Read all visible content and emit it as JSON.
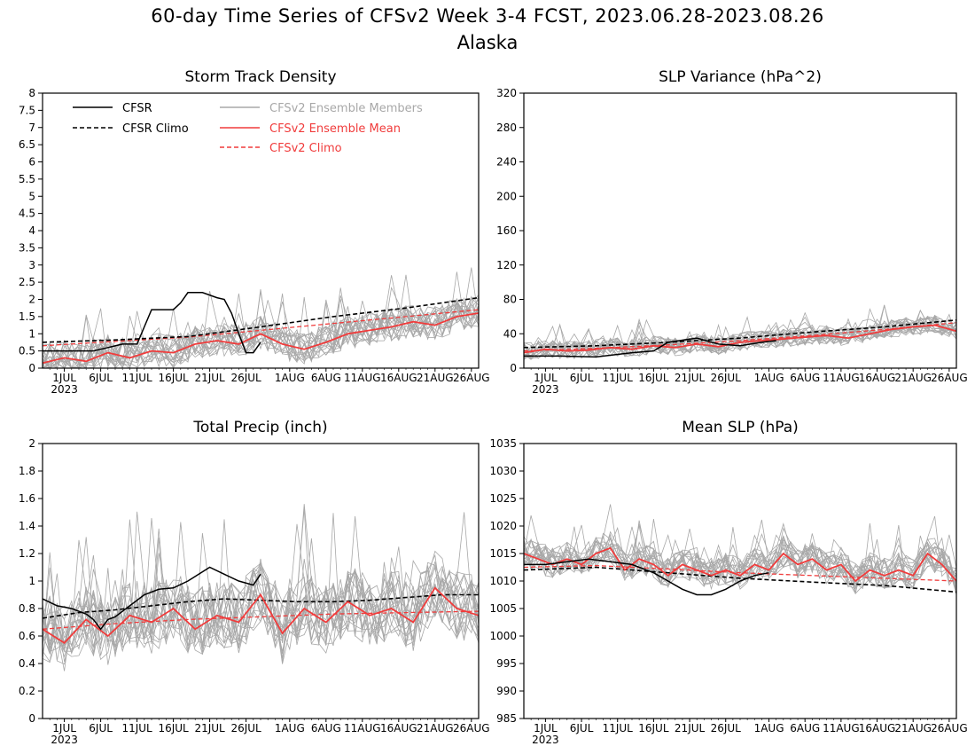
{
  "header": {
    "title": "60-day Time Series of CFSv2 Week 3-4 FCST, 2023.06.28-2023.08.26",
    "subtitle": "Alaska"
  },
  "legend": {
    "cfsr": "CFSR",
    "cfsr_climo": "CFSR Climo",
    "ens_members": "CFSv2 Ensemble Members",
    "ens_mean": "CFSv2 Ensemble Mean",
    "cfsv2_climo": "CFSv2 Climo"
  },
  "colors": {
    "cfsr": "#000000",
    "cfsr_climo": "#000000",
    "members": "#a8a8a8",
    "ens_mean": "#f03c3c",
    "cfsv2_climo": "#f03c3c"
  },
  "x_axis": {
    "days": 60,
    "tick_days": [
      3,
      8,
      13,
      18,
      23,
      28,
      34,
      39,
      44,
      49,
      54,
      59
    ],
    "tick_labels": [
      "1JUL",
      "6JUL",
      "11JUL",
      "16JUL",
      "21JUL",
      "26JUL",
      "1AUG",
      "6AUG",
      "11AUG",
      "16AUG",
      "21AUG",
      "26AUG"
    ],
    "year_label": "2023"
  },
  "chart_data": [
    {
      "type": "line",
      "title": "Storm Track Density",
      "ylim": [
        0,
        8
      ],
      "yticks": [
        0,
        0.5,
        1,
        1.5,
        2,
        2.5,
        3,
        3.5,
        4,
        4.5,
        5,
        5.5,
        6,
        6.5,
        7,
        7.5,
        8
      ],
      "ytick_labels": [
        "0",
        "0.5",
        "1",
        "1.5",
        "2",
        "2.5",
        "3",
        "3.5",
        "4",
        "4.5",
        "5",
        "5.5",
        "6",
        "6.5",
        "7",
        "7.5",
        "8"
      ],
      "legend_position": "top-left",
      "cfsr": {
        "x": [
          0,
          3,
          5,
          7,
          9,
          11,
          13,
          14,
          15,
          18,
          19,
          20,
          22,
          24,
          25,
          26,
          27,
          28,
          29,
          30
        ],
        "y": [
          0.5,
          0.5,
          0.5,
          0.5,
          0.6,
          0.7,
          0.7,
          1.2,
          1.7,
          1.7,
          1.9,
          2.2,
          2.2,
          2.05,
          2.0,
          1.6,
          1.0,
          0.45,
          0.45,
          0.75
        ]
      },
      "cfsr_climo": {
        "x": [
          0,
          10,
          20,
          30,
          40,
          50,
          60
        ],
        "y": [
          0.75,
          0.82,
          0.92,
          1.2,
          1.5,
          1.75,
          2.05
        ]
      },
      "cfsv2_climo": {
        "x": [
          0,
          10,
          20,
          30,
          40,
          50,
          60
        ],
        "y": [
          0.65,
          0.78,
          0.9,
          1.1,
          1.3,
          1.5,
          1.7
        ]
      },
      "ens_mean": {
        "x": [
          0,
          3,
          6,
          9,
          12,
          15,
          18,
          21,
          24,
          27,
          30,
          33,
          36,
          39,
          42,
          45,
          48,
          51,
          54,
          57,
          60
        ],
        "y": [
          0.15,
          0.3,
          0.2,
          0.45,
          0.3,
          0.5,
          0.45,
          0.7,
          0.8,
          0.7,
          1.0,
          0.7,
          0.55,
          0.75,
          1.0,
          1.1,
          1.2,
          1.35,
          1.25,
          1.5,
          1.6
        ]
      },
      "members": {
        "count": 20,
        "spread": 0.55,
        "lower": 0.0
      }
    },
    {
      "type": "line",
      "title": "SLP Variance (hPa^2)",
      "ylim": [
        0,
        320
      ],
      "yticks": [
        0,
        40,
        80,
        120,
        160,
        200,
        240,
        280,
        320
      ],
      "ytick_labels": [
        "0",
        "40",
        "80",
        "120",
        "160",
        "200",
        "240",
        "280",
        "320"
      ],
      "cfsr": {
        "x": [
          0,
          5,
          10,
          15,
          18,
          20,
          24,
          27,
          30,
          33,
          35
        ],
        "y": [
          14,
          14,
          13,
          18,
          20,
          30,
          35,
          28,
          26,
          30,
          32
        ]
      },
      "cfsr_climo": {
        "x": [
          0,
          10,
          20,
          30,
          40,
          50,
          60
        ],
        "y": [
          24,
          26,
          30,
          35,
          42,
          48,
          56
        ]
      },
      "cfsv2_climo": {
        "x": [
          0,
          10,
          20,
          30,
          40,
          50,
          60
        ],
        "y": [
          20,
          23,
          27,
          32,
          38,
          45,
          53
        ]
      },
      "ens_mean": {
        "x": [
          0,
          3,
          6,
          9,
          12,
          15,
          18,
          21,
          24,
          27,
          30,
          33,
          36,
          39,
          42,
          45,
          48,
          51,
          54,
          57,
          60
        ],
        "y": [
          18,
          22,
          20,
          21,
          24,
          22,
          26,
          24,
          28,
          25,
          30,
          32,
          34,
          36,
          38,
          35,
          40,
          45,
          48,
          50,
          43
        ]
      },
      "members": {
        "count": 20,
        "spread": 12,
        "lower": 0
      }
    },
    {
      "type": "line",
      "title": "Total Precip (inch)",
      "ylim": [
        0,
        2
      ],
      "yticks": [
        0,
        0.2,
        0.4,
        0.6,
        0.8,
        1,
        1.2,
        1.4,
        1.6,
        1.8,
        2
      ],
      "ytick_labels": [
        "0",
        "0.2",
        "0.4",
        "0.6",
        "0.8",
        "1",
        "1.2",
        "1.4",
        "1.6",
        "1.8",
        "2"
      ],
      "cfsr": {
        "x": [
          0,
          2,
          4,
          6,
          7,
          8,
          9,
          10,
          12,
          14,
          16,
          18,
          20,
          23,
          25,
          27,
          29,
          30
        ],
        "y": [
          0.87,
          0.82,
          0.8,
          0.76,
          0.72,
          0.65,
          0.72,
          0.74,
          0.82,
          0.9,
          0.94,
          0.95,
          1.0,
          1.1,
          1.05,
          1.0,
          0.97,
          1.05
        ]
      },
      "cfsr_climo": {
        "x": [
          0,
          5,
          10,
          15,
          20,
          25,
          30,
          35,
          40,
          45,
          50,
          55,
          60
        ],
        "y": [
          0.73,
          0.77,
          0.79,
          0.82,
          0.85,
          0.87,
          0.86,
          0.85,
          0.85,
          0.86,
          0.88,
          0.9,
          0.9
        ]
      },
      "cfsv2_climo": {
        "x": [
          0,
          10,
          20,
          30,
          40,
          50,
          60
        ],
        "y": [
          0.65,
          0.69,
          0.72,
          0.74,
          0.76,
          0.77,
          0.78
        ]
      },
      "ens_mean": {
        "x": [
          0,
          3,
          6,
          9,
          12,
          15,
          18,
          21,
          24,
          27,
          30,
          33,
          36,
          39,
          42,
          45,
          48,
          51,
          54,
          57,
          60
        ],
        "y": [
          0.65,
          0.55,
          0.72,
          0.6,
          0.75,
          0.7,
          0.8,
          0.65,
          0.75,
          0.7,
          0.9,
          0.62,
          0.8,
          0.7,
          0.85,
          0.75,
          0.8,
          0.7,
          0.95,
          0.8,
          0.75
        ]
      },
      "members": {
        "count": 20,
        "spread": 0.28,
        "lower": 0.0
      }
    },
    {
      "type": "line",
      "title": "Mean SLP (hPa)",
      "ylim": [
        985,
        1035
      ],
      "yticks": [
        985,
        990,
        995,
        1000,
        1005,
        1010,
        1015,
        1020,
        1025,
        1030,
        1035
      ],
      "ytick_labels": [
        "985",
        "990",
        "995",
        "1000",
        "1005",
        "1010",
        "1015",
        "1020",
        "1025",
        "1030",
        "1035"
      ],
      "cfsr": {
        "x": [
          0,
          3,
          6,
          9,
          12,
          15,
          18,
          20,
          22,
          24,
          26,
          28,
          30,
          32,
          34
        ],
        "y": [
          1013,
          1013,
          1013.5,
          1014,
          1013.5,
          1013,
          1011.5,
          1010,
          1008.5,
          1007.5,
          1007.5,
          1008.5,
          1010,
          1011,
          1011.5
        ]
      },
      "cfsr_climo": {
        "x": [
          0,
          10,
          20,
          30,
          40,
          50,
          60
        ],
        "y": [
          1012,
          1012.5,
          1011.5,
          1010.5,
          1009.8,
          1009.2,
          1008
        ]
      },
      "cfsv2_climo": {
        "x": [
          0,
          10,
          20,
          30,
          40,
          50,
          60
        ],
        "y": [
          1012.5,
          1012.8,
          1012.2,
          1011.5,
          1011.0,
          1010.5,
          1010.0
        ]
      },
      "ens_mean": {
        "x": [
          0,
          2,
          4,
          6,
          8,
          10,
          12,
          14,
          16,
          18,
          20,
          22,
          24,
          26,
          28,
          30,
          32,
          34,
          36,
          38,
          40,
          42,
          44,
          46,
          48,
          50,
          52,
          54,
          56,
          58,
          60
        ],
        "y": [
          1015,
          1014,
          1013,
          1014,
          1013,
          1015,
          1016,
          1012,
          1014,
          1013,
          1011,
          1013,
          1012,
          1011,
          1012,
          1011,
          1013,
          1012,
          1015,
          1013,
          1014,
          1012,
          1013,
          1010,
          1012,
          1011,
          1012,
          1011,
          1015,
          1013,
          1010
        ]
      },
      "members": {
        "count": 20,
        "spread": 3.2,
        "lower": 985
      }
    }
  ]
}
